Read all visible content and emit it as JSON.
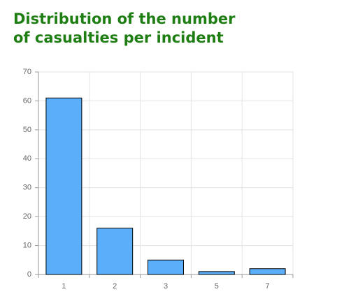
{
  "chart_data": {
    "type": "bar",
    "title": "Distribution of the number of casualties per incident",
    "categories": [
      "1",
      "2",
      "3",
      "5",
      "7"
    ],
    "values": [
      61,
      16,
      5,
      1,
      2
    ],
    "color": "#5aaefa",
    "ylim": [
      0,
      70
    ],
    "yticks": [
      0,
      10,
      20,
      30,
      40,
      50,
      60,
      70
    ],
    "grid": true
  }
}
